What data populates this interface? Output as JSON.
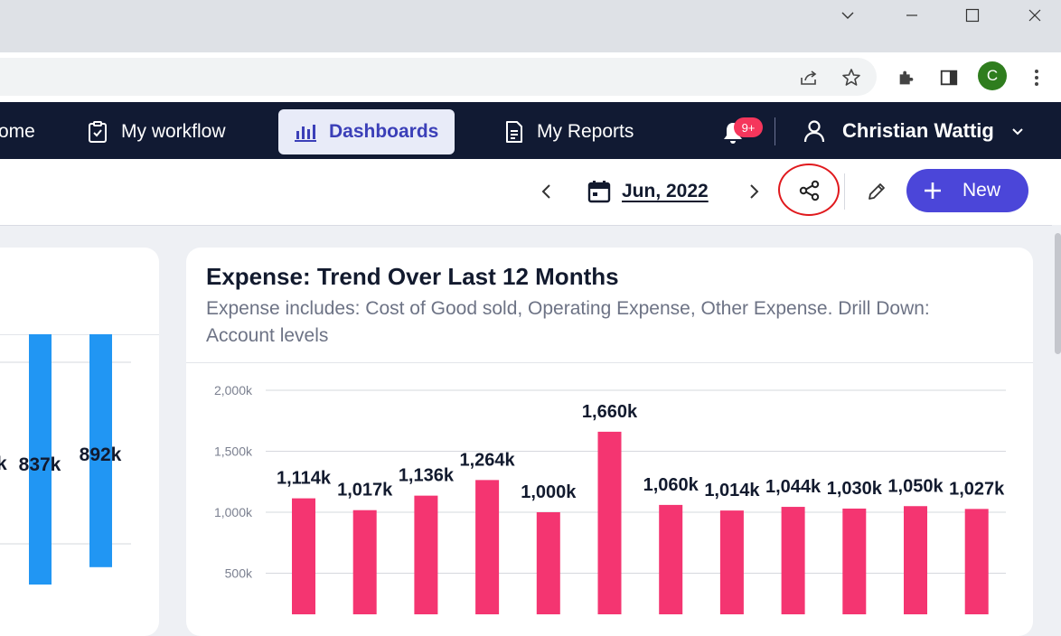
{
  "browser": {
    "window_controls": [
      "chevron-down",
      "minimize",
      "maximize",
      "close"
    ],
    "profile_initial": "C"
  },
  "nav": {
    "items": [
      {
        "label": "ome",
        "icon": "home-icon"
      },
      {
        "label": "My workflow",
        "icon": "clipboard-check-icon"
      },
      {
        "label": "Dashboards",
        "icon": "bar-chart-icon",
        "active": true
      },
      {
        "label": "My Reports",
        "icon": "document-icon"
      }
    ],
    "notifications_badge": "9+",
    "user_name": "Christian Wattig"
  },
  "toolbar": {
    "date_label": "Jun, 2022",
    "new_label": "New"
  },
  "left_card": {
    "values": [
      "k",
      "837k",
      "892k"
    ]
  },
  "expense_card": {
    "title": "Expense: Trend Over Last 12 Months",
    "subtitle": "Expense includes: Cost of Good sold, Operating Expense, Other Expense. Drill Down: Account levels"
  },
  "chart_data": {
    "type": "bar",
    "title": "",
    "values": [
      1114,
      1017,
      1136,
      1264,
      1000,
      1660,
      1060,
      1014,
      1044,
      1030,
      1050,
      1027
    ],
    "data_labels": [
      "1,114k",
      "1,017k",
      "1,136k",
      "1,264k",
      "1,000k",
      "1,660k",
      "1,060k",
      "1,014k",
      "1,044k",
      "1,030k",
      "1,050k",
      "1,027k"
    ],
    "yticks": [
      "2,000k",
      "1,500k",
      "1,000k",
      "500k"
    ],
    "ytick_values": [
      2000,
      1500,
      1000,
      500
    ],
    "ylim": [
      0,
      2000
    ],
    "grid": true,
    "color": "#f43571"
  },
  "left_chart_data": {
    "type": "bar",
    "values": [
      837,
      892
    ],
    "color": "#2196f3"
  },
  "colors": {
    "nav_bg": "#111a33",
    "accent": "#4b46d9",
    "expense_bar": "#f43571",
    "left_bar": "#2196f3"
  }
}
